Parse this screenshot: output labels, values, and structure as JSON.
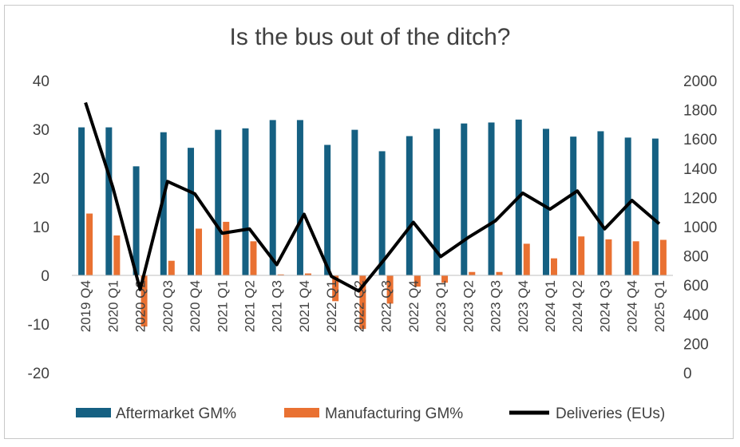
{
  "chart_data": {
    "type": "bar",
    "title": "Is the bus out of the ditch?",
    "categories": [
      "2019 Q4",
      "2020 Q1",
      "2020 Q2",
      "2020 Q3",
      "2020 Q4",
      "2021 Q1",
      "2021 Q2",
      "2021 Q3",
      "2021 Q4",
      "2022 Q1",
      "2022 Q2",
      "2022 Q3",
      "2022 Q4",
      "2023 Q1",
      "2023 Q2",
      "2023 Q3",
      "2023 Q4",
      "2024 Q1",
      "2024 Q2",
      "2024 Q3",
      "2024 Q4",
      "2025 Q1"
    ],
    "series": [
      {
        "name": "Aftermarket GM%",
        "type": "bar",
        "axis": "left",
        "color": "#156082",
        "values": [
          30.4,
          30.4,
          22.4,
          29.4,
          26.2,
          29.9,
          30.2,
          31.9,
          31.9,
          26.8,
          29.9,
          25.5,
          28.6,
          30.1,
          31.2,
          31.4,
          32.0,
          30.1,
          28.5,
          29.6,
          28.3,
          28.1
        ]
      },
      {
        "name": "Manufacturing GM%",
        "type": "bar",
        "axis": "left",
        "color": "#e97132",
        "values": [
          12.7,
          8.2,
          -10.5,
          3.0,
          9.6,
          11.0,
          7.0,
          0.2,
          0.4,
          -5.3,
          -11.0,
          -5.8,
          -2.3,
          -1.5,
          0.7,
          0.7,
          6.5,
          3.5,
          8.0,
          7.4,
          7.0,
          7.3
        ]
      },
      {
        "name": "Deliveries (EUs)",
        "type": "line",
        "axis": "right",
        "color": "#000000",
        "values": [
          1850,
          1270,
          570,
          1310,
          1225,
          955,
          985,
          740,
          1085,
          660,
          560,
          790,
          1030,
          795,
          925,
          1040,
          1230,
          1120,
          1245,
          985,
          1180,
          1020
        ]
      }
    ],
    "y_left": {
      "min": -20,
      "max": 40,
      "step": 10,
      "ticks": [
        "40",
        "30",
        "20",
        "10",
        "0",
        "-10",
        "-20"
      ]
    },
    "y_right": {
      "min": 0,
      "max": 2000,
      "step": 200,
      "ticks": [
        "2000",
        "1800",
        "1600",
        "1400",
        "1200",
        "1000",
        "800",
        "600",
        "400",
        "200",
        "0"
      ]
    },
    "grid": false,
    "legend_position": "bottom"
  }
}
